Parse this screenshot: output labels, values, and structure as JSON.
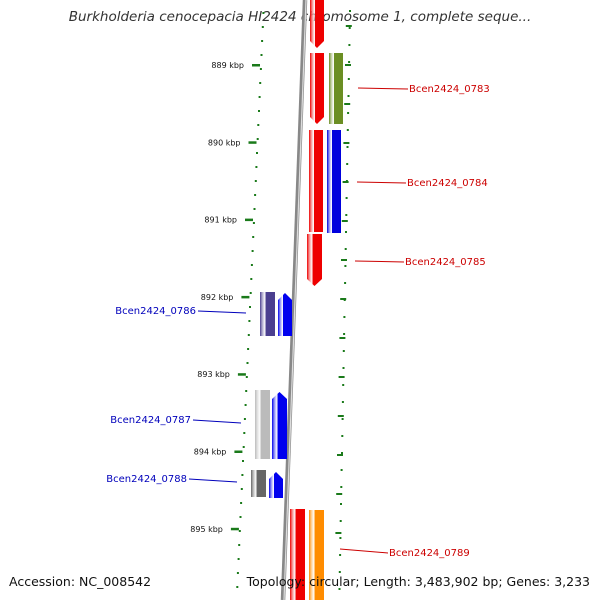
{
  "title": "Burkholderia cenocepacia HI2424 chromosome 1, complete seque...",
  "footer": {
    "accession": "Accession: NC_008542",
    "summary": "Topology: circular; Length: 3,483,902 bp; Genes: 3,233"
  },
  "scale": {
    "unit": "kbp",
    "ticks": [
      {
        "label": "889 kbp",
        "kbp": 889
      },
      {
        "label": "890 kbp",
        "kbp": 890
      },
      {
        "label": "891 kbp",
        "kbp": 891
      },
      {
        "label": "892 kbp",
        "kbp": 892
      },
      {
        "label": "893 kbp",
        "kbp": 893
      },
      {
        "label": "894 kbp",
        "kbp": 894
      },
      {
        "label": "895 kbp",
        "kbp": 895
      }
    ]
  },
  "genes": [
    {
      "name": "Bcen2424_0783",
      "strand": "+",
      "labeled": true
    },
    {
      "name": "Bcen2424_0784",
      "strand": "+",
      "labeled": true
    },
    {
      "name": "Bcen2424_0785",
      "strand": "+",
      "labeled": true
    },
    {
      "name": "Bcen2424_0786",
      "strand": "-",
      "labeled": true
    },
    {
      "name": "Bcen2424_0787",
      "strand": "-",
      "labeled": true
    },
    {
      "name": "Bcen2424_0788",
      "strand": "-",
      "labeled": true
    },
    {
      "name": "Bcen2424_0789",
      "strand": "+",
      "labeled": true
    }
  ],
  "colors": {
    "forward_cds": "#ee0000",
    "reverse_cds": "#0000ee",
    "forward_label": "#cc0000",
    "reverse_label": "#0000bb",
    "backbone": "#888888",
    "scale_ticks": "#1a7a1a",
    "cog_0783": "#6b8e23",
    "cog_0784": "#0000dd",
    "cog_0786": "#4b3f8f",
    "cog_0787": "#bbbbbb",
    "cog_0788": "#666666",
    "cog_0789": "#ff8c00"
  }
}
